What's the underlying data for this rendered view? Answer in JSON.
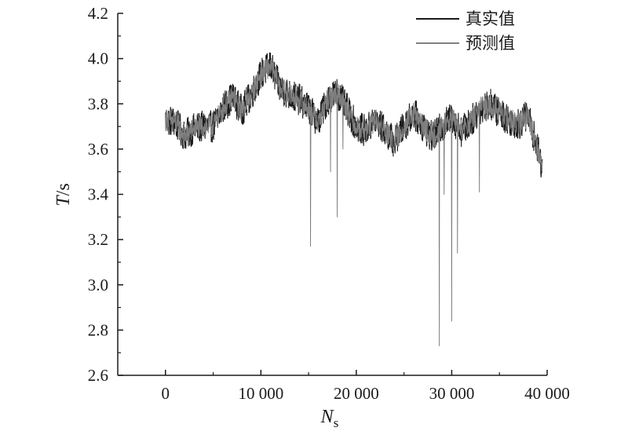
{
  "chart_data": {
    "type": "line",
    "xlabel": {
      "main": "N",
      "sub": "s"
    },
    "ylabel": {
      "main": "T",
      "unit": "/s"
    },
    "xlim": [
      -5000,
      40000
    ],
    "ylim": [
      2.6,
      4.2
    ],
    "xticks": [
      0,
      10000,
      20000,
      30000,
      40000
    ],
    "xtick_labels": [
      "0",
      "10 000",
      "20 000",
      "30 000",
      "40 000"
    ],
    "yticks": [
      2.6,
      2.8,
      3.0,
      3.2,
      3.4,
      3.6,
      3.8,
      4.0,
      4.2
    ],
    "ytick_labels": [
      "2.6",
      "2.8",
      "3.0",
      "3.2",
      "3.4",
      "3.6",
      "3.8",
      "4.0",
      "4.2"
    ],
    "grid": false,
    "legend": "top-right",
    "colors": {
      "actual": "#1a1a1a",
      "predicted": "#7f7f7f",
      "axis": "#1a1a1a"
    },
    "series": [
      {
        "name": "真实值",
        "color": "#1a1a1a",
        "x_range": [
          0,
          39500
        ],
        "trend_x": [
          0,
          1000,
          2000,
          3000,
          4000,
          5000,
          6000,
          7000,
          8000,
          9000,
          10000,
          11000,
          12000,
          13000,
          14000,
          15000,
          16000,
          17000,
          18000,
          19000,
          20000,
          21000,
          22000,
          23000,
          24000,
          25000,
          26000,
          27000,
          28000,
          29000,
          30000,
          31000,
          32000,
          33000,
          34000,
          35000,
          36000,
          37000,
          38000,
          39000,
          39500
        ],
        "trend_y": [
          3.73,
          3.72,
          3.66,
          3.69,
          3.7,
          3.7,
          3.78,
          3.83,
          3.77,
          3.84,
          3.93,
          3.97,
          3.87,
          3.84,
          3.82,
          3.78,
          3.72,
          3.82,
          3.85,
          3.78,
          3.7,
          3.68,
          3.73,
          3.68,
          3.63,
          3.7,
          3.76,
          3.7,
          3.65,
          3.7,
          3.74,
          3.68,
          3.72,
          3.78,
          3.8,
          3.76,
          3.73,
          3.71,
          3.75,
          3.6,
          3.52
        ],
        "noise_amplitude": 0.07
      },
      {
        "name": "预测值",
        "color": "#7f7f7f",
        "x_range": [
          0,
          39500
        ],
        "trend_x": [
          0,
          1000,
          2000,
          3000,
          4000,
          5000,
          6000,
          7000,
          8000,
          9000,
          10000,
          11000,
          12000,
          13000,
          14000,
          15000,
          16000,
          17000,
          18000,
          19000,
          20000,
          21000,
          22000,
          23000,
          24000,
          25000,
          26000,
          27000,
          28000,
          29000,
          30000,
          31000,
          32000,
          33000,
          34000,
          35000,
          36000,
          37000,
          38000,
          39000,
          39500
        ],
        "trend_y": [
          3.73,
          3.72,
          3.66,
          3.69,
          3.7,
          3.7,
          3.78,
          3.83,
          3.77,
          3.84,
          3.93,
          3.97,
          3.87,
          3.84,
          3.82,
          3.78,
          3.72,
          3.82,
          3.85,
          3.78,
          3.7,
          3.68,
          3.73,
          3.68,
          3.63,
          3.7,
          3.76,
          3.7,
          3.65,
          3.7,
          3.74,
          3.68,
          3.72,
          3.78,
          3.8,
          3.76,
          3.73,
          3.71,
          3.75,
          3.6,
          3.52
        ],
        "noise_amplitude": 0.05,
        "spikes": [
          {
            "x": 15200,
            "y": 3.17
          },
          {
            "x": 17300,
            "y": 3.5
          },
          {
            "x": 18000,
            "y": 3.3
          },
          {
            "x": 18600,
            "y": 3.6
          },
          {
            "x": 28700,
            "y": 2.73
          },
          {
            "x": 29200,
            "y": 3.4
          },
          {
            "x": 30000,
            "y": 2.84
          },
          {
            "x": 30600,
            "y": 3.14
          },
          {
            "x": 32900,
            "y": 3.41
          }
        ]
      }
    ]
  }
}
